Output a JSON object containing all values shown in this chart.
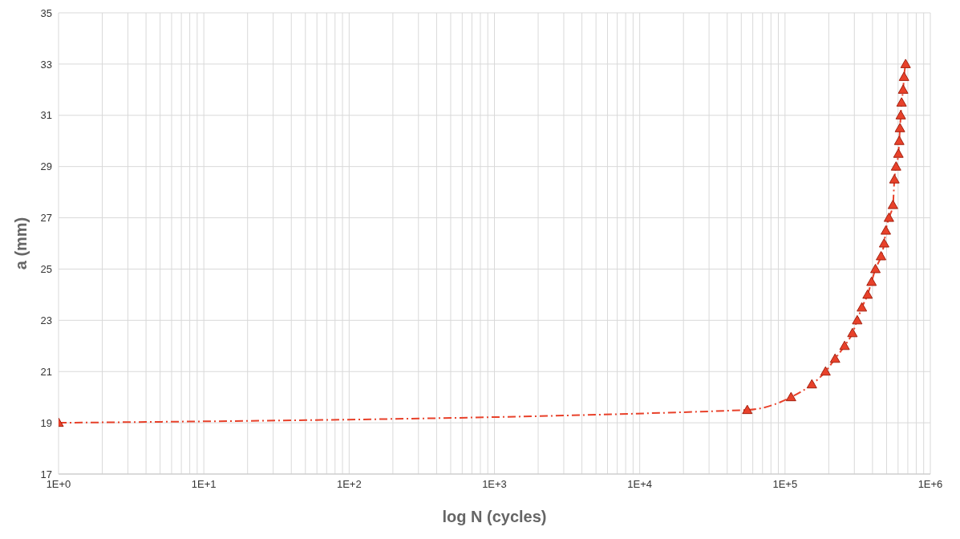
{
  "chart_data": {
    "type": "line",
    "xlabel": "log N (cycles)",
    "ylabel": "a (mm)",
    "x": [
      1,
      55000,
      110000,
      153000,
      190000,
      221000,
      257000,
      291000,
      314000,
      338000,
      370000,
      394000,
      419000,
      458000,
      481000,
      494000,
      519000,
      553000,
      566000,
      581000,
      603000,
      611000,
      618000,
      626000,
      634000,
      650000,
      659000,
      676000
    ],
    "series": [
      {
        "color": "#e8412a",
        "values": [
          19,
          19.5,
          20,
          20.5,
          21,
          21.5,
          22,
          22.5,
          23,
          23.5,
          24,
          24.5,
          25,
          25.5,
          26,
          26.5,
          27,
          27.5,
          28.5,
          29,
          29.5,
          30,
          30.5,
          31,
          31.5,
          32,
          32.5,
          33
        ]
      }
    ],
    "xlim": [
      1,
      1000000
    ],
    "xticks": [
      {
        "value": 1,
        "label": "1E+0"
      },
      {
        "value": 10,
        "label": "1E+1"
      },
      {
        "value": 100,
        "label": "1E+2"
      },
      {
        "value": 1000,
        "label": "1E+3"
      },
      {
        "value": 10000,
        "label": "1E+4"
      },
      {
        "value": 100000,
        "label": "1E+5"
      },
      {
        "value": 1000000,
        "label": "1E+6"
      }
    ],
    "ylim": [
      17,
      35
    ],
    "yticks": [
      17,
      19,
      21,
      23,
      25,
      27,
      29,
      31,
      33,
      35
    ],
    "log": "x",
    "grid": true,
    "marker": "triangle",
    "line_style": "dashdot",
    "legend": false
  }
}
